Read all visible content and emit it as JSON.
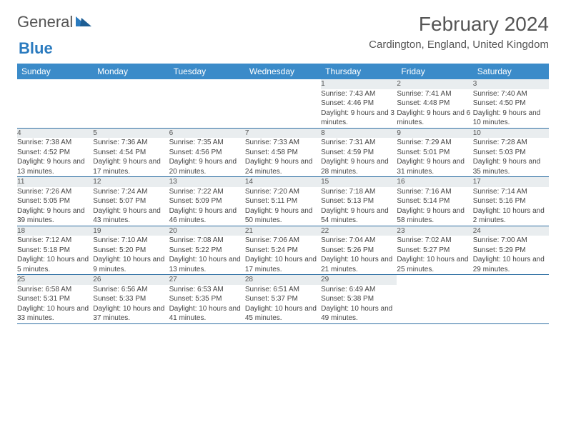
{
  "logo": {
    "general": "General",
    "blue": "Blue"
  },
  "title": "February 2024",
  "location": "Cardington, England, United Kingdom",
  "colors": {
    "header_bg": "#3b8bc9",
    "header_text": "#ffffff",
    "daynum_bg": "#e9edef",
    "row_border": "#2f6fa3",
    "title_text": "#555555",
    "body_text": "#444444",
    "logo_blue": "#2b7bbf"
  },
  "typography": {
    "title_fontsize": 28,
    "location_fontsize": 15,
    "dayheader_fontsize": 12,
    "daynum_fontsize": 11,
    "cell_fontsize": 10
  },
  "calendar": {
    "type": "table",
    "day_headers": [
      "Sunday",
      "Monday",
      "Tuesday",
      "Wednesday",
      "Thursday",
      "Friday",
      "Saturday"
    ],
    "weeks": [
      [
        null,
        null,
        null,
        null,
        {
          "d": "1",
          "sr": "Sunrise: 7:43 AM",
          "ss": "Sunset: 4:46 PM",
          "dl": "Daylight: 9 hours and 3 minutes."
        },
        {
          "d": "2",
          "sr": "Sunrise: 7:41 AM",
          "ss": "Sunset: 4:48 PM",
          "dl": "Daylight: 9 hours and 6 minutes."
        },
        {
          "d": "3",
          "sr": "Sunrise: 7:40 AM",
          "ss": "Sunset: 4:50 PM",
          "dl": "Daylight: 9 hours and 10 minutes."
        }
      ],
      [
        {
          "d": "4",
          "sr": "Sunrise: 7:38 AM",
          "ss": "Sunset: 4:52 PM",
          "dl": "Daylight: 9 hours and 13 minutes."
        },
        {
          "d": "5",
          "sr": "Sunrise: 7:36 AM",
          "ss": "Sunset: 4:54 PM",
          "dl": "Daylight: 9 hours and 17 minutes."
        },
        {
          "d": "6",
          "sr": "Sunrise: 7:35 AM",
          "ss": "Sunset: 4:56 PM",
          "dl": "Daylight: 9 hours and 20 minutes."
        },
        {
          "d": "7",
          "sr": "Sunrise: 7:33 AM",
          "ss": "Sunset: 4:58 PM",
          "dl": "Daylight: 9 hours and 24 minutes."
        },
        {
          "d": "8",
          "sr": "Sunrise: 7:31 AM",
          "ss": "Sunset: 4:59 PM",
          "dl": "Daylight: 9 hours and 28 minutes."
        },
        {
          "d": "9",
          "sr": "Sunrise: 7:29 AM",
          "ss": "Sunset: 5:01 PM",
          "dl": "Daylight: 9 hours and 31 minutes."
        },
        {
          "d": "10",
          "sr": "Sunrise: 7:28 AM",
          "ss": "Sunset: 5:03 PM",
          "dl": "Daylight: 9 hours and 35 minutes."
        }
      ],
      [
        {
          "d": "11",
          "sr": "Sunrise: 7:26 AM",
          "ss": "Sunset: 5:05 PM",
          "dl": "Daylight: 9 hours and 39 minutes."
        },
        {
          "d": "12",
          "sr": "Sunrise: 7:24 AM",
          "ss": "Sunset: 5:07 PM",
          "dl": "Daylight: 9 hours and 43 minutes."
        },
        {
          "d": "13",
          "sr": "Sunrise: 7:22 AM",
          "ss": "Sunset: 5:09 PM",
          "dl": "Daylight: 9 hours and 46 minutes."
        },
        {
          "d": "14",
          "sr": "Sunrise: 7:20 AM",
          "ss": "Sunset: 5:11 PM",
          "dl": "Daylight: 9 hours and 50 minutes."
        },
        {
          "d": "15",
          "sr": "Sunrise: 7:18 AM",
          "ss": "Sunset: 5:13 PM",
          "dl": "Daylight: 9 hours and 54 minutes."
        },
        {
          "d": "16",
          "sr": "Sunrise: 7:16 AM",
          "ss": "Sunset: 5:14 PM",
          "dl": "Daylight: 9 hours and 58 minutes."
        },
        {
          "d": "17",
          "sr": "Sunrise: 7:14 AM",
          "ss": "Sunset: 5:16 PM",
          "dl": "Daylight: 10 hours and 2 minutes."
        }
      ],
      [
        {
          "d": "18",
          "sr": "Sunrise: 7:12 AM",
          "ss": "Sunset: 5:18 PM",
          "dl": "Daylight: 10 hours and 5 minutes."
        },
        {
          "d": "19",
          "sr": "Sunrise: 7:10 AM",
          "ss": "Sunset: 5:20 PM",
          "dl": "Daylight: 10 hours and 9 minutes."
        },
        {
          "d": "20",
          "sr": "Sunrise: 7:08 AM",
          "ss": "Sunset: 5:22 PM",
          "dl": "Daylight: 10 hours and 13 minutes."
        },
        {
          "d": "21",
          "sr": "Sunrise: 7:06 AM",
          "ss": "Sunset: 5:24 PM",
          "dl": "Daylight: 10 hours and 17 minutes."
        },
        {
          "d": "22",
          "sr": "Sunrise: 7:04 AM",
          "ss": "Sunset: 5:26 PM",
          "dl": "Daylight: 10 hours and 21 minutes."
        },
        {
          "d": "23",
          "sr": "Sunrise: 7:02 AM",
          "ss": "Sunset: 5:27 PM",
          "dl": "Daylight: 10 hours and 25 minutes."
        },
        {
          "d": "24",
          "sr": "Sunrise: 7:00 AM",
          "ss": "Sunset: 5:29 PM",
          "dl": "Daylight: 10 hours and 29 minutes."
        }
      ],
      [
        {
          "d": "25",
          "sr": "Sunrise: 6:58 AM",
          "ss": "Sunset: 5:31 PM",
          "dl": "Daylight: 10 hours and 33 minutes."
        },
        {
          "d": "26",
          "sr": "Sunrise: 6:56 AM",
          "ss": "Sunset: 5:33 PM",
          "dl": "Daylight: 10 hours and 37 minutes."
        },
        {
          "d": "27",
          "sr": "Sunrise: 6:53 AM",
          "ss": "Sunset: 5:35 PM",
          "dl": "Daylight: 10 hours and 41 minutes."
        },
        {
          "d": "28",
          "sr": "Sunrise: 6:51 AM",
          "ss": "Sunset: 5:37 PM",
          "dl": "Daylight: 10 hours and 45 minutes."
        },
        {
          "d": "29",
          "sr": "Sunrise: 6:49 AM",
          "ss": "Sunset: 5:38 PM",
          "dl": "Daylight: 10 hours and 49 minutes."
        },
        null,
        null
      ]
    ]
  }
}
